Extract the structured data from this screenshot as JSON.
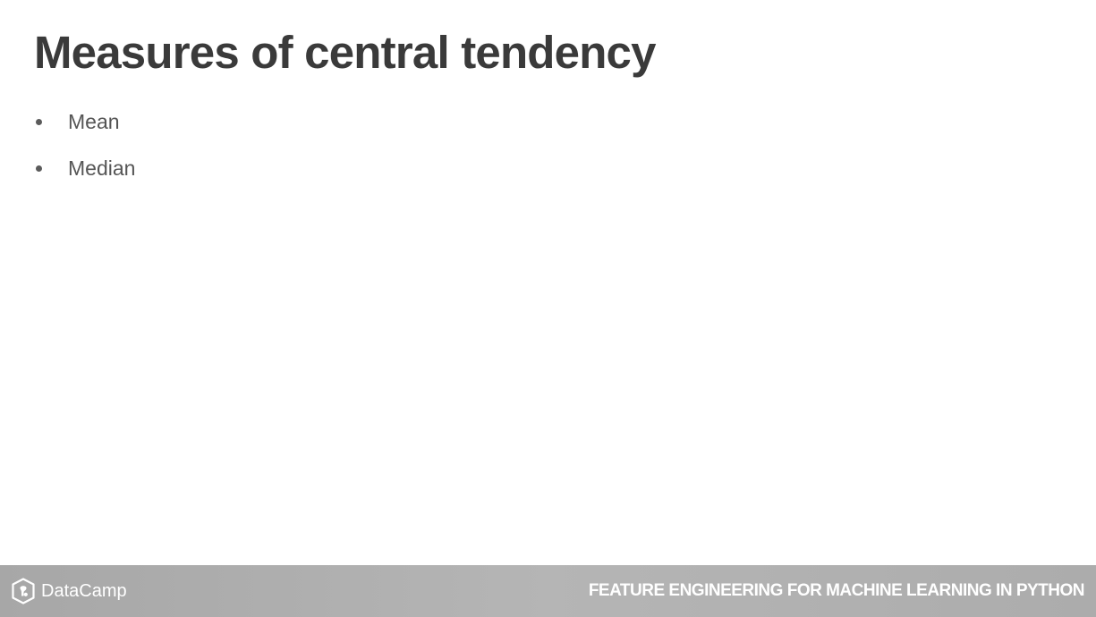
{
  "slide": {
    "title": "Measures of central tendency",
    "bullets": [
      {
        "text": "Mean"
      },
      {
        "text": "Median"
      }
    ]
  },
  "footer": {
    "brand_name": "DataCamp",
    "course_title": "FEATURE ENGINEERING FOR MACHINE LEARNING IN PYTHON",
    "icon": "datacamp-logo-icon"
  },
  "colors": {
    "title": "#3a3a3a",
    "bullet_text": "#555555",
    "footer_background": "#b0b0b0",
    "footer_text": "#ffffff"
  }
}
